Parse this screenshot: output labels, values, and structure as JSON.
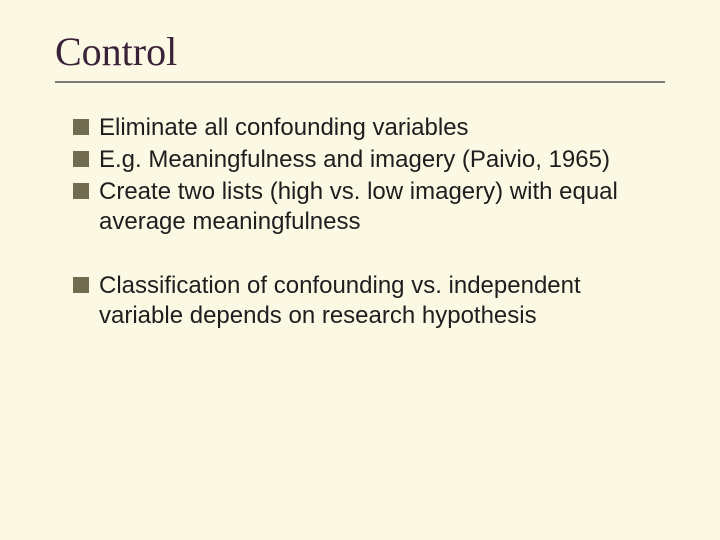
{
  "slide": {
    "title": "Control",
    "title_font": "Times New Roman",
    "title_fontsize": 40,
    "title_color": "#3a2238",
    "rule_color": "#7a7a7a",
    "background_color": "#fbf8e4",
    "bullet_color": "#716c4f",
    "body_fontsize": 24,
    "body_color": "#1e1e1e",
    "groups": [
      {
        "items": [
          "Eliminate all confounding variables",
          "E.g. Meaningfulness and imagery (Paivio, 1965)",
          "Create two lists (high vs. low imagery) with equal average meaningfulness"
        ]
      },
      {
        "items": [
          "Classification of confounding vs. independent variable depends on research hypothesis"
        ]
      }
    ]
  }
}
